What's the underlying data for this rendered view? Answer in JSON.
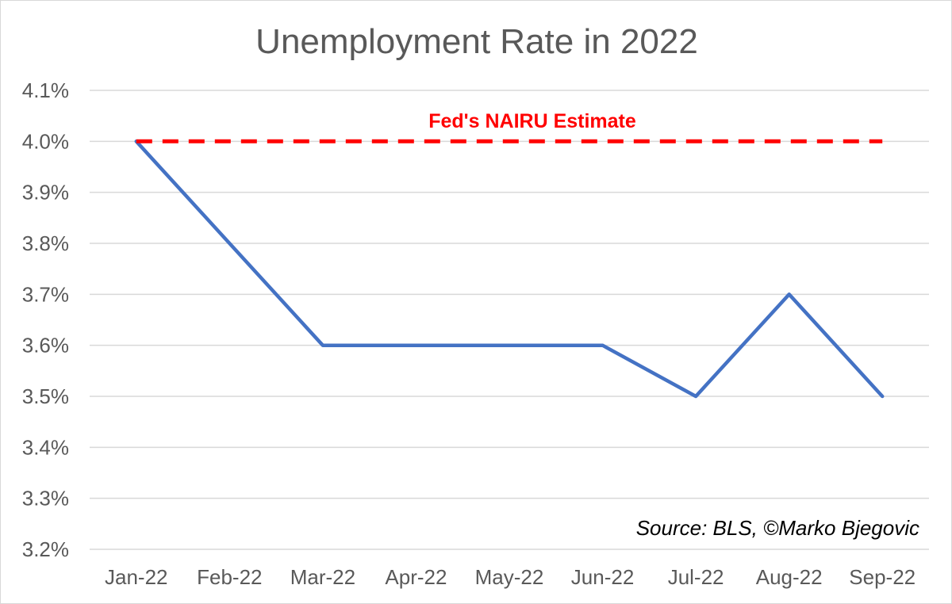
{
  "chart_data": {
    "type": "line",
    "title": "Unemployment Rate in 2022",
    "xlabel": "",
    "ylabel": "",
    "categories": [
      "Jan-22",
      "Feb-22",
      "Mar-22",
      "Apr-22",
      "May-22",
      "Jun-22",
      "Jul-22",
      "Aug-22",
      "Sep-22"
    ],
    "series": [
      {
        "values": [
          4.0,
          3.8,
          3.6,
          3.6,
          3.6,
          3.6,
          3.5,
          3.7,
          3.5
        ],
        "color": "#4472c4",
        "style": "solid"
      },
      {
        "values": [
          4.0,
          4.0,
          4.0,
          4.0,
          4.0,
          4.0,
          4.0,
          4.0,
          4.0
        ],
        "color": "#ff0000",
        "style": "dashed"
      }
    ],
    "ylim": [
      3.2,
      4.1
    ],
    "yticks": [
      "3.2%",
      "3.3%",
      "3.4%",
      "3.5%",
      "3.6%",
      "3.7%",
      "3.8%",
      "3.9%",
      "4.0%",
      "4.1%"
    ],
    "grid": true,
    "legend": "none",
    "annotations": {
      "nairu_label": "Fed's NAIRU Estimate",
      "source": "Source: BLS, ©Marko Bjegovic"
    },
    "colors": {
      "grid": "#d9d9d9",
      "text": "#595959",
      "nairu_text": "#ff0000"
    }
  }
}
